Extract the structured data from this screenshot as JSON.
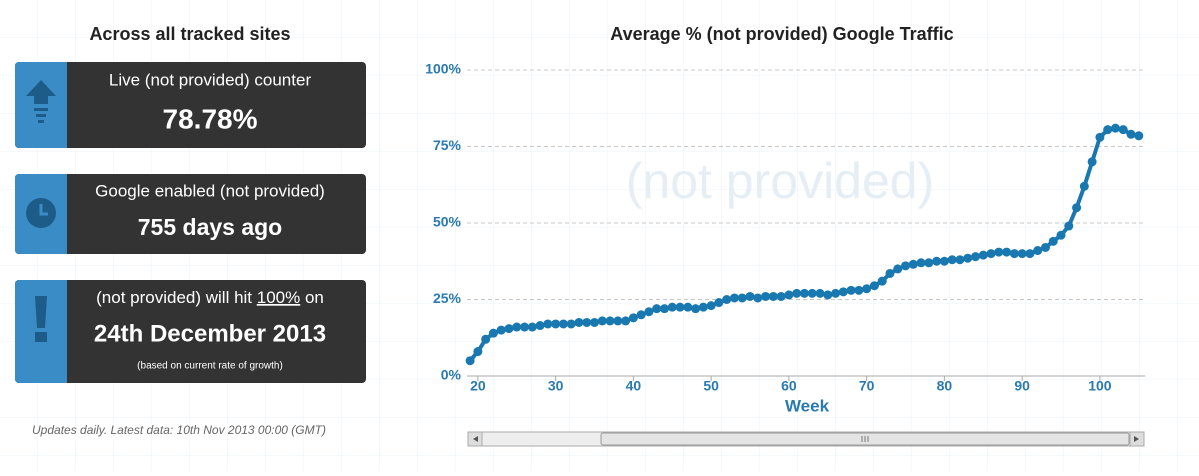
{
  "header": {
    "title": "Across all tracked sites"
  },
  "cards": [
    {
      "label": "Live (not provided) counter",
      "value": "78.78%"
    },
    {
      "label": "Google enabled (not provided)",
      "value": "755 days ago"
    },
    {
      "label_parts": [
        "(not provided) will hit ",
        "100%",
        " on"
      ],
      "value": "24th December 2013",
      "note": "(based on current rate of growth)"
    }
  ],
  "footer": "Updates daily. Latest data: 10th Nov 2013 00:00 (GMT)",
  "chart_data": {
    "type": "line",
    "title": "Average % (not provided) Google Traffic",
    "watermark": "(not provided)",
    "x_label": "Week",
    "color": "#1a78b0",
    "x": [
      19,
      20,
      21,
      22,
      23,
      24,
      25,
      26,
      27,
      28,
      29,
      30,
      31,
      32,
      33,
      34,
      35,
      36,
      37,
      38,
      39,
      40,
      41,
      42,
      43,
      44,
      45,
      46,
      47,
      48,
      49,
      50,
      51,
      52,
      53,
      54,
      55,
      56,
      57,
      58,
      59,
      60,
      61,
      62,
      63,
      64,
      65,
      66,
      67,
      68,
      69,
      70,
      71,
      72,
      73,
      74,
      75,
      76,
      77,
      78,
      79,
      80,
      81,
      82,
      83,
      84,
      85,
      86,
      87,
      88,
      89,
      90,
      91,
      92,
      93,
      94,
      95,
      96,
      97,
      98,
      99,
      100,
      101,
      102,
      103,
      104,
      105
    ],
    "values": [
      5,
      8,
      12,
      14,
      15,
      15.5,
      16,
      16,
      16,
      16.5,
      17,
      17,
      17,
      17,
      17.5,
      17.5,
      17.5,
      18,
      18,
      18,
      18,
      19,
      20,
      21,
      22,
      22,
      22.5,
      22.5,
      22.5,
      22,
      22.5,
      23,
      24,
      25,
      25.5,
      25.5,
      26,
      25.5,
      26,
      26,
      26,
      26.5,
      27,
      27,
      27,
      27,
      26.5,
      27,
      27.5,
      28,
      28,
      28.5,
      29.5,
      31,
      33.5,
      35,
      36,
      36.5,
      37,
      37,
      37.5,
      37.5,
      38,
      38,
      38.5,
      39,
      39.5,
      40,
      40.5,
      40.5,
      40,
      40,
      40,
      41,
      42,
      44,
      46,
      49,
      55,
      62,
      70,
      78,
      80.5,
      81,
      80.5,
      79,
      78.5
    ],
    "xlim": [
      18.6,
      105.8
    ],
    "xticks": [
      20,
      30,
      40,
      50,
      60,
      70,
      80,
      90,
      100
    ],
    "ylim": [
      0,
      100
    ],
    "yticks": [
      {
        "value": 0,
        "label": "0%"
      },
      {
        "value": 25,
        "label": "25%"
      },
      {
        "value": 50,
        "label": "50%"
      },
      {
        "value": 75,
        "label": "75%"
      },
      {
        "value": 100,
        "label": "100%"
      }
    ],
    "grid": true
  }
}
